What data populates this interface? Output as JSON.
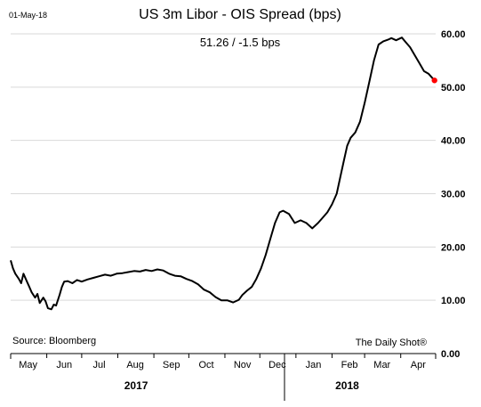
{
  "chart_data": {
    "type": "line",
    "date_stamp": "01-May-18",
    "title": "US 3m Libor - OIS Spread (bps)",
    "subtitle": "51.26  /  -1.5 bps",
    "source": "Source: Bloomberg",
    "credit": "The Daily Shot®",
    "xlabel": "",
    "ylabel": "",
    "ylim": [
      0,
      60
    ],
    "yticks": [
      "0.00",
      "10.00",
      "20.00",
      "30.00",
      "40.00",
      "50.00",
      "60.00"
    ],
    "grid": true,
    "legend": "none",
    "months": [
      "May",
      "Jun",
      "Jul",
      "Aug",
      "Sep",
      "Oct",
      "Nov",
      "Dec",
      "Jan",
      "Feb",
      "Mar",
      "Apr"
    ],
    "years": [
      "2017",
      "2018"
    ],
    "last_point_color": "#ff0000",
    "line_color": "#000000",
    "series": [
      {
        "points": [
          [
            "2017-05-01",
            17.5
          ],
          [
            "2017-05-03",
            16.0
          ],
          [
            "2017-05-05",
            15.0
          ],
          [
            "2017-05-08",
            14.0
          ],
          [
            "2017-05-10",
            13.2
          ],
          [
            "2017-05-12",
            15.0
          ],
          [
            "2017-05-15",
            13.5
          ],
          [
            "2017-05-17",
            12.5
          ],
          [
            "2017-05-19",
            11.5
          ],
          [
            "2017-05-22",
            10.5
          ],
          [
            "2017-05-24",
            11.2
          ],
          [
            "2017-05-26",
            9.5
          ],
          [
            "2017-05-29",
            10.5
          ],
          [
            "2017-05-31",
            9.8
          ],
          [
            "2017-06-02",
            8.5
          ],
          [
            "2017-06-05",
            8.3
          ],
          [
            "2017-06-07",
            9.2
          ],
          [
            "2017-06-09",
            9.0
          ],
          [
            "2017-06-12",
            11.0
          ],
          [
            "2017-06-14",
            12.5
          ],
          [
            "2017-06-16",
            13.5
          ],
          [
            "2017-06-19",
            13.6
          ],
          [
            "2017-06-23",
            13.2
          ],
          [
            "2017-06-27",
            13.8
          ],
          [
            "2017-07-01",
            13.5
          ],
          [
            "2017-07-06",
            13.9
          ],
          [
            "2017-07-11",
            14.2
          ],
          [
            "2017-07-16",
            14.5
          ],
          [
            "2017-07-21",
            14.8
          ],
          [
            "2017-07-26",
            14.6
          ],
          [
            "2017-07-31",
            15.0
          ],
          [
            "2017-08-05",
            15.1
          ],
          [
            "2017-08-10",
            15.3
          ],
          [
            "2017-08-15",
            15.5
          ],
          [
            "2017-08-20",
            15.4
          ],
          [
            "2017-08-25",
            15.7
          ],
          [
            "2017-08-30",
            15.5
          ],
          [
            "2017-09-04",
            15.8
          ],
          [
            "2017-09-09",
            15.6
          ],
          [
            "2017-09-14",
            15.0
          ],
          [
            "2017-09-19",
            14.6
          ],
          [
            "2017-09-24",
            14.5
          ],
          [
            "2017-09-29",
            14.0
          ],
          [
            "2017-10-04",
            13.6
          ],
          [
            "2017-10-09",
            13.0
          ],
          [
            "2017-10-14",
            12.0
          ],
          [
            "2017-10-19",
            11.5
          ],
          [
            "2017-10-24",
            10.6
          ],
          [
            "2017-10-29",
            10.0
          ],
          [
            "2017-11-03",
            10.0
          ],
          [
            "2017-11-08",
            9.6
          ],
          [
            "2017-11-13",
            10.1
          ],
          [
            "2017-11-16",
            11.0
          ],
          [
            "2017-11-20",
            11.8
          ],
          [
            "2017-11-24",
            12.5
          ],
          [
            "2017-11-28",
            14.0
          ],
          [
            "2017-12-02",
            16.0
          ],
          [
            "2017-12-06",
            18.5
          ],
          [
            "2017-12-10",
            21.5
          ],
          [
            "2017-12-14",
            24.5
          ],
          [
            "2017-12-18",
            26.5
          ],
          [
            "2017-12-21",
            26.8
          ],
          [
            "2017-12-26",
            26.2
          ],
          [
            "2017-12-31",
            24.5
          ],
          [
            "2018-01-05",
            25.0
          ],
          [
            "2018-01-10",
            24.5
          ],
          [
            "2018-01-15",
            23.5
          ],
          [
            "2018-01-20",
            24.5
          ],
          [
            "2018-01-24",
            25.5
          ],
          [
            "2018-01-28",
            26.5
          ],
          [
            "2018-02-01",
            28.0
          ],
          [
            "2018-02-05",
            30.0
          ],
          [
            "2018-02-08",
            33.0
          ],
          [
            "2018-02-11",
            36.0
          ],
          [
            "2018-02-14",
            39.0
          ],
          [
            "2018-02-17",
            40.5
          ],
          [
            "2018-02-21",
            41.5
          ],
          [
            "2018-02-25",
            43.5
          ],
          [
            "2018-03-01",
            47.0
          ],
          [
            "2018-03-05",
            51.0
          ],
          [
            "2018-03-09",
            55.0
          ],
          [
            "2018-03-13",
            58.0
          ],
          [
            "2018-03-17",
            58.6
          ],
          [
            "2018-03-21",
            58.9
          ],
          [
            "2018-03-24",
            59.2
          ],
          [
            "2018-03-28",
            58.8
          ],
          [
            "2018-04-02",
            59.3
          ],
          [
            "2018-04-05",
            58.5
          ],
          [
            "2018-04-09",
            57.5
          ],
          [
            "2018-04-13",
            56.0
          ],
          [
            "2018-04-17",
            54.5
          ],
          [
            "2018-04-21",
            53.0
          ],
          [
            "2018-04-25",
            52.5
          ],
          [
            "2018-04-30",
            51.26
          ]
        ]
      }
    ]
  }
}
